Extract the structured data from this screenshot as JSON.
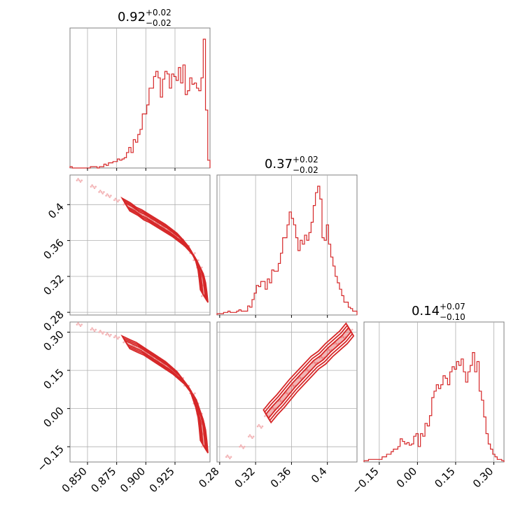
{
  "chart_data": [
    {
      "type": "histogram",
      "panel": "x",
      "title": {
        "value": "0.92",
        "plus": "+0.02",
        "minus": "−0.02"
      },
      "range": [
        0.835,
        0.955
      ],
      "step_shape": [
        0.01,
        0,
        0,
        0,
        0,
        0,
        0,
        0,
        0,
        0.01,
        0.01,
        0.01,
        0,
        0.01,
        0.01,
        0.03,
        0.02,
        0.04,
        0.04,
        0.05,
        0.05,
        0.07,
        0.06,
        0.07,
        0.08,
        0.12,
        0.16,
        0.12,
        0.22,
        0.2,
        0.26,
        0.3,
        0.42,
        0.42,
        0.49,
        0.62,
        0.62,
        0.71,
        0.75,
        0.7,
        0.55,
        0.69,
        0.75,
        0.73,
        0.62,
        0.73,
        0.71,
        0.68,
        0.78,
        0.66,
        0.8,
        0.57,
        0.6,
        0.7,
        0.65,
        0.66,
        0.62,
        0.6,
        0.7,
        1.0,
        0.45,
        0.06
      ],
      "xlim": [
        0.835,
        0.955
      ],
      "ticks": [
        0.85,
        0.875,
        0.9,
        0.925
      ],
      "vlines": [
        0.85,
        0.875,
        0.9,
        0.925
      ]
    },
    {
      "type": "histogram",
      "panel": "y",
      "title": {
        "value": "0.37",
        "plus": "+0.02",
        "minus": "−0.02"
      },
      "range": [
        0.277,
        0.433
      ],
      "step_shape": [
        0.01,
        0.01,
        0.01,
        0.02,
        0.02,
        0.03,
        0.02,
        0.02,
        0.02,
        0.03,
        0.04,
        0.03,
        0.03,
        0.03,
        0.07,
        0.06,
        0.12,
        0.17,
        0.23,
        0.22,
        0.26,
        0.26,
        0.2,
        0.28,
        0.25,
        0.35,
        0.34,
        0.34,
        0.4,
        0.48,
        0.6,
        0.6,
        0.7,
        0.8,
        0.75,
        0.7,
        0.6,
        0.5,
        0.58,
        0.55,
        0.62,
        0.58,
        0.64,
        0.72,
        0.85,
        0.95,
        1.0,
        0.9,
        0.6,
        0.58,
        0.7,
        0.55,
        0.45,
        0.38,
        0.3,
        0.25,
        0.2,
        0.15,
        0.1,
        0.1,
        0.06,
        0.05,
        0.03,
        0.03
      ],
      "xlim": [
        0.277,
        0.433
      ],
      "ticks": [
        0.28,
        0.32,
        0.36,
        0.4
      ],
      "vlines": [
        0.28,
        0.32,
        0.36,
        0.4
      ]
    },
    {
      "type": "histogram",
      "panel": "z",
      "title": {
        "value": "0.14",
        "plus": "+0.07",
        "minus": "−0.10"
      },
      "range": [
        -0.21,
        0.34
      ],
      "step_shape": [
        0.01,
        0.01,
        0.02,
        0.02,
        0.02,
        0.02,
        0.02,
        0.02,
        0.04,
        0.04,
        0.06,
        0.06,
        0.08,
        0.1,
        0.1,
        0.12,
        0.18,
        0.16,
        0.14,
        0.15,
        0.13,
        0.14,
        0.2,
        0.22,
        0.12,
        0.22,
        0.2,
        0.3,
        0.28,
        0.36,
        0.5,
        0.55,
        0.6,
        0.57,
        0.6,
        0.67,
        0.65,
        0.6,
        0.7,
        0.74,
        0.72,
        0.78,
        0.75,
        0.8,
        0.7,
        0.62,
        0.7,
        0.75,
        0.85,
        0.7,
        0.78,
        0.55,
        0.48,
        0.35,
        0.22,
        0.14,
        0.1,
        0.06,
        0.04,
        0.02,
        0.02,
        0.01
      ],
      "xlim": [
        -0.21,
        0.34
      ],
      "ticks": [
        -0.15,
        0.0,
        0.15,
        0.3
      ],
      "tick_labels": [
        "−0.15",
        "0.00",
        "0.15",
        "0.30"
      ],
      "vlines": [
        -0.15,
        0.0,
        0.15,
        0.3
      ]
    },
    {
      "type": "scatter",
      "panel": "x-y",
      "x": [
        0.843,
        0.855,
        0.862,
        0.868,
        0.875,
        0.883,
        0.89,
        0.895,
        0.9,
        0.905,
        0.91,
        0.915,
        0.92,
        0.925,
        0.93,
        0.935,
        0.94,
        0.943,
        0.946,
        0.948,
        0.949,
        0.95
      ],
      "y": [
        0.427,
        0.42,
        0.414,
        0.41,
        0.405,
        0.4,
        0.395,
        0.39,
        0.387,
        0.383,
        0.379,
        0.375,
        0.371,
        0.366,
        0.361,
        0.354,
        0.346,
        0.338,
        0.33,
        0.32,
        0.31,
        0.298
      ],
      "contours": 3,
      "xlim": [
        0.835,
        0.955
      ],
      "ylim": [
        0.277,
        0.433
      ],
      "yticks": [
        0.28,
        0.32,
        0.36,
        0.4
      ],
      "xticks": [
        0.85,
        0.875,
        0.9,
        0.925
      ]
    },
    {
      "type": "scatter",
      "panel": "x-z",
      "x": [
        0.843,
        0.855,
        0.862,
        0.868,
        0.875,
        0.883,
        0.89,
        0.895,
        0.9,
        0.905,
        0.91,
        0.915,
        0.92,
        0.925,
        0.93,
        0.935,
        0.94,
        0.943,
        0.946,
        0.948,
        0.949,
        0.95
      ],
      "y": [
        0.33,
        0.31,
        0.3,
        0.29,
        0.28,
        0.26,
        0.245,
        0.235,
        0.22,
        0.205,
        0.19,
        0.175,
        0.16,
        0.14,
        0.12,
        0.09,
        0.06,
        0.02,
        -0.02,
        -0.06,
        -0.1,
        -0.15
      ],
      "contours": 3,
      "xlim": [
        0.835,
        0.955
      ],
      "ylim": [
        -0.21,
        0.34
      ],
      "yticks": [
        -0.15,
        0.0,
        0.15,
        0.3
      ],
      "ytick_labels": [
        "−0.15",
        "0.00",
        "0.15",
        "0.30"
      ],
      "xticks": [
        0.85,
        0.875,
        0.9,
        0.925
      ],
      "xtick_labels": [
        "0.850",
        "0.875",
        "0.900",
        "0.925"
      ]
    },
    {
      "type": "scatter",
      "panel": "y-z",
      "x": [
        0.29,
        0.305,
        0.315,
        0.325,
        0.333,
        0.34,
        0.348,
        0.355,
        0.362,
        0.37,
        0.378,
        0.386,
        0.394,
        0.402,
        0.41,
        0.418,
        0.425
      ],
      "y": [
        -0.19,
        -0.15,
        -0.11,
        -0.07,
        -0.03,
        0.0,
        0.03,
        0.06,
        0.09,
        0.12,
        0.15,
        0.18,
        0.2,
        0.23,
        0.255,
        0.28,
        0.31
      ],
      "contours": 3,
      "xlim": [
        0.277,
        0.433
      ],
      "ylim": [
        -0.21,
        0.34
      ],
      "xticks": [
        0.28,
        0.32,
        0.36,
        0.4
      ],
      "yticks": [
        -0.15,
        0.0,
        0.15,
        0.3
      ]
    }
  ],
  "colors": {
    "series": "#d62728",
    "points": "#f3b4b6",
    "grid": "#b0b0b0",
    "frame": "#808080"
  }
}
